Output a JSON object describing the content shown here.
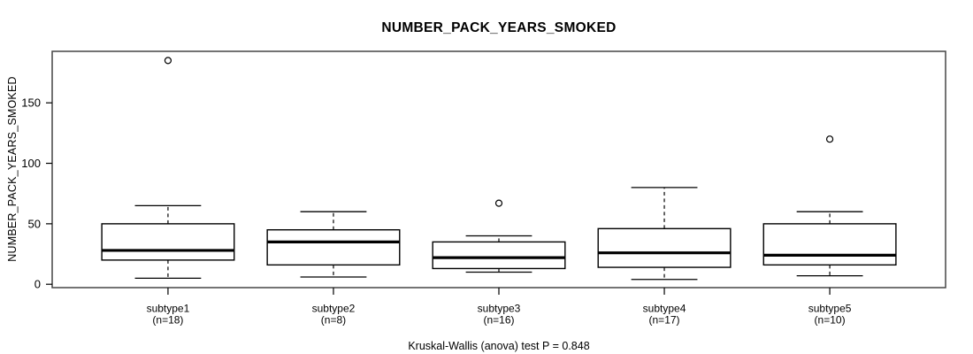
{
  "chart_data": {
    "type": "boxplot",
    "title": "NUMBER_PACK_YEARS_SMOKED",
    "ylabel": "NUMBER_PACK_YEARS_SMOKED",
    "caption": "Kruskal-Wallis (anova) test P = 0.848",
    "yticks": [
      0,
      50,
      100,
      150
    ],
    "ylim": [
      -3,
      192
    ],
    "grid": false,
    "legend": null,
    "groups": [
      {
        "label": "subtype1",
        "n": 18,
        "n_label": "(n=18)",
        "whisker_low": 5,
        "q1": 20,
        "median": 28,
        "q3": 50,
        "whisker_high": 65,
        "outliers": [
          185
        ]
      },
      {
        "label": "subtype2",
        "n": 8,
        "n_label": "(n=8)",
        "whisker_low": 6,
        "q1": 16,
        "median": 35,
        "q3": 45,
        "whisker_high": 60,
        "outliers": []
      },
      {
        "label": "subtype3",
        "n": 16,
        "n_label": "(n=16)",
        "whisker_low": 10,
        "q1": 13,
        "median": 22,
        "q3": 35,
        "whisker_high": 40,
        "outliers": [
          67
        ]
      },
      {
        "label": "subtype4",
        "n": 17,
        "n_label": "(n=17)",
        "whisker_low": 4,
        "q1": 14,
        "median": 26,
        "q3": 46,
        "whisker_high": 80,
        "outliers": []
      },
      {
        "label": "subtype5",
        "n": 10,
        "n_label": "(n=10)",
        "whisker_low": 7,
        "q1": 16,
        "median": 24,
        "q3": 50,
        "whisker_high": 60,
        "outliers": [
          120
        ]
      }
    ],
    "colors": {
      "background": "#ffffff",
      "box_fill": "#ffffff",
      "stroke": "#000000",
      "frame": "#454545",
      "text": "#000000"
    }
  }
}
